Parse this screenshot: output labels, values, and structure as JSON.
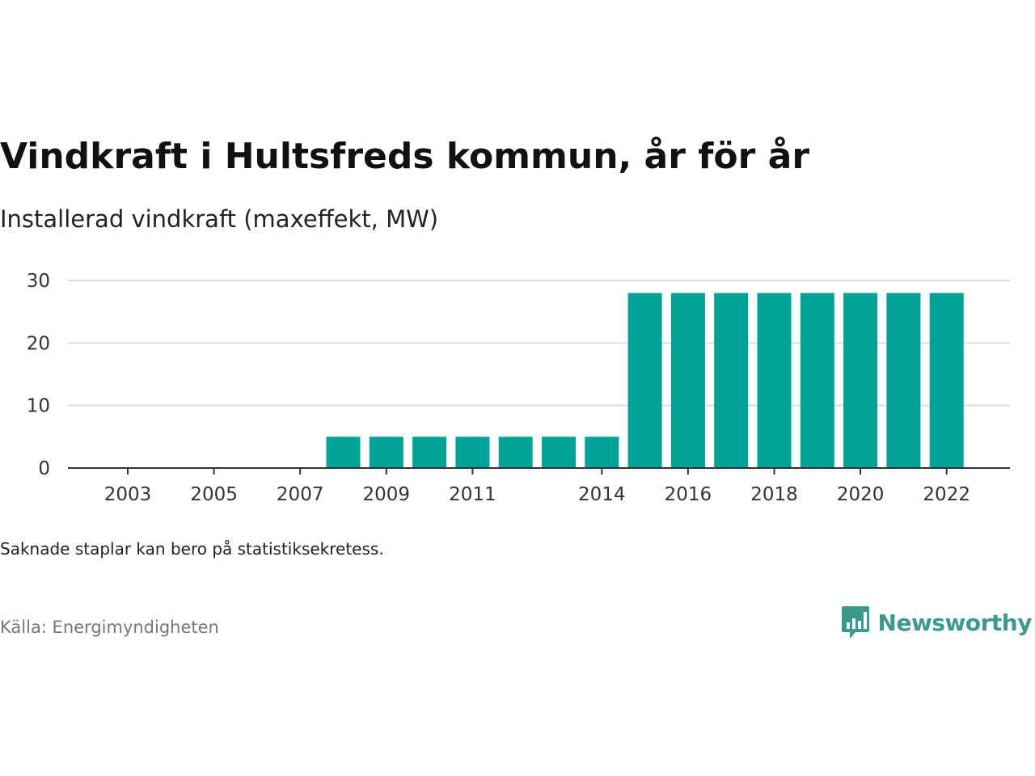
{
  "title": "Vindkraft i Hultsfreds kommun, år för år",
  "subtitle": "Installerad vindkraft (maxeffekt, MW)",
  "note": "Saknade staplar kan bero på statistiksekretess.",
  "source": "Källa: Energimyndigheten",
  "brand": {
    "name": "Newsworthy",
    "icon": "newsworthy-logo-icon",
    "color": "#3a9a8e"
  },
  "chart_data": {
    "type": "bar",
    "categories": [
      "2003",
      "2004",
      "2005",
      "2006",
      "2007",
      "2008",
      "2009",
      "2010",
      "2011",
      "2012",
      "2013",
      "2014",
      "2015",
      "2016",
      "2017",
      "2018",
      "2019",
      "2020",
      "2021",
      "2022"
    ],
    "values": [
      null,
      null,
      null,
      null,
      null,
      5,
      5,
      5,
      5,
      5,
      5,
      5,
      28,
      28,
      28,
      28,
      28,
      28,
      28,
      28
    ],
    "tick_labels_x": [
      "2003",
      "2005",
      "2007",
      "2009",
      "2011",
      "2014",
      "2016",
      "2018",
      "2020",
      "2022"
    ],
    "yticks": [
      0,
      10,
      20,
      30
    ],
    "ylim": [
      0,
      30
    ],
    "grid": true,
    "bar_color": "#00a398"
  }
}
